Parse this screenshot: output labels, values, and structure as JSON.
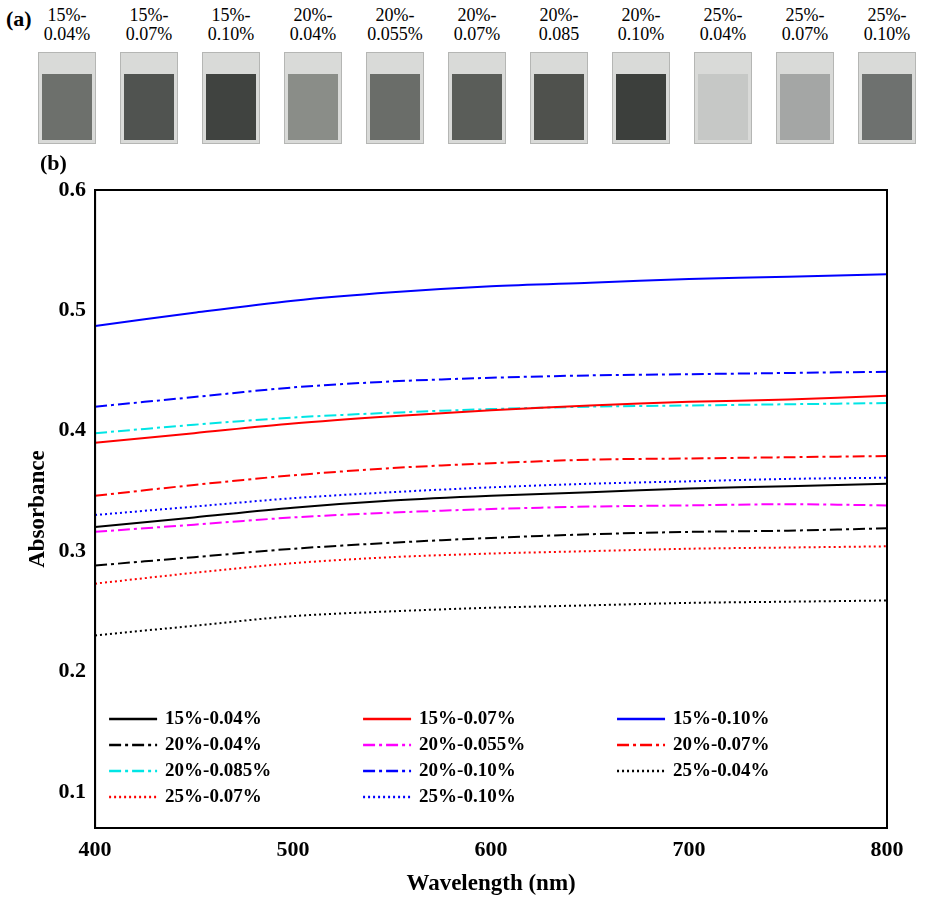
{
  "photos": {
    "panel_label": "(a)",
    "samples": [
      {
        "label": "15%-0.04%",
        "color": "#6d706c"
      },
      {
        "label": "15%-0.07%",
        "color": "#505350"
      },
      {
        "label": "15%-0.10%",
        "color": "#404340"
      },
      {
        "label": "20%-0.04%",
        "color": "#8a8d88"
      },
      {
        "label": "20%-0.055%",
        "color": "#6a6d69"
      },
      {
        "label": "20%-0.07%",
        "color": "#5a5d59"
      },
      {
        "label": "20%-0.085",
        "color": "#4f514d"
      },
      {
        "label": "20%-0.10%",
        "color": "#3c3f3c"
      },
      {
        "label": "25%-0.04%",
        "color": "#c6c8c6"
      },
      {
        "label": "25%-0.07%",
        "color": "#a4a6a5"
      },
      {
        "label": "25%-0.10%",
        "color": "#6e716f"
      }
    ]
  },
  "chart_data": {
    "type": "line",
    "panel_label": "(b)",
    "x_label": "Wavelength (nm)",
    "y_label": "Absorbance",
    "x": [
      400,
      450,
      500,
      550,
      600,
      650,
      700,
      750,
      800
    ],
    "xlim": [
      400,
      800
    ],
    "xticks": [
      400,
      500,
      600,
      700,
      800
    ],
    "ylim": [
      0.07,
      0.6
    ],
    "yticks": [
      0.1,
      0.2,
      0.3,
      0.4,
      0.5,
      0.6
    ],
    "grid": false,
    "legend": "lower left",
    "series": [
      {
        "name": "15%-0.04%",
        "color": "#000000",
        "line_style": "solid",
        "values": [
          0.32,
          0.328,
          0.336,
          0.342,
          0.346,
          0.349,
          0.352,
          0.354,
          0.356
        ]
      },
      {
        "name": "15%-0.07%",
        "color": "#ff0000",
        "line_style": "solid",
        "values": [
          0.39,
          0.398,
          0.406,
          0.412,
          0.417,
          0.421,
          0.424,
          0.426,
          0.429
        ]
      },
      {
        "name": "15%-0.10%",
        "color": "#0000ff",
        "line_style": "solid",
        "values": [
          0.487,
          0.498,
          0.508,
          0.515,
          0.52,
          0.523,
          0.526,
          0.528,
          0.53
        ]
      },
      {
        "name": "20%-0.04%",
        "color": "#000000",
        "line_style": "dashdot",
        "values": [
          0.288,
          0.295,
          0.302,
          0.307,
          0.311,
          0.314,
          0.316,
          0.317,
          0.319
        ]
      },
      {
        "name": "20%-0.055%",
        "color": "#ff00ff",
        "line_style": "dashdot",
        "values": [
          0.316,
          0.322,
          0.328,
          0.332,
          0.335,
          0.337,
          0.338,
          0.339,
          0.338
        ]
      },
      {
        "name": "20%-0.07%",
        "color": "#ff0000",
        "line_style": "dashdot",
        "values": [
          0.346,
          0.355,
          0.363,
          0.369,
          0.373,
          0.376,
          0.377,
          0.378,
          0.379
        ]
      },
      {
        "name": "20%-0.085%",
        "color": "#00e5e5",
        "line_style": "dashdot",
        "values": [
          0.398,
          0.405,
          0.411,
          0.415,
          0.418,
          0.42,
          0.421,
          0.422,
          0.423
        ]
      },
      {
        "name": "20%-0.10%",
        "color": "#0000ff",
        "line_style": "dashdot",
        "values": [
          0.42,
          0.428,
          0.436,
          0.441,
          0.444,
          0.446,
          0.447,
          0.448,
          0.449
        ]
      },
      {
        "name": "25%-0.04%",
        "color": "#000000",
        "line_style": "dotted",
        "values": [
          0.23,
          0.238,
          0.246,
          0.25,
          0.253,
          0.255,
          0.257,
          0.258,
          0.259
        ]
      },
      {
        "name": "25%-0.07%",
        "color": "#ff0000",
        "line_style": "dotted",
        "values": [
          0.273,
          0.282,
          0.29,
          0.295,
          0.298,
          0.3,
          0.302,
          0.303,
          0.304
        ]
      },
      {
        "name": "25%-0.10%",
        "color": "#0000ff",
        "line_style": "dotted",
        "values": [
          0.33,
          0.337,
          0.344,
          0.349,
          0.353,
          0.356,
          0.358,
          0.36,
          0.361
        ]
      }
    ]
  }
}
